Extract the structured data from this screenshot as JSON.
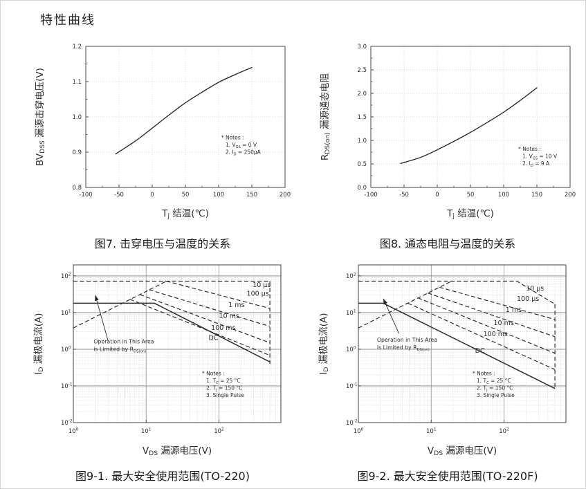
{
  "page": {
    "title": "特性曲线",
    "ink": "#2b2b2b",
    "frame_color": "#444444",
    "grid_minor_color": "#c9c9c9",
    "grid_major_color": "#9a9a9a"
  },
  "chart_data": [
    {
      "id": "fig7",
      "type": "line",
      "caption": "图7. 击穿电压与温度的关系",
      "xlabel": "T[j] 结温(℃)",
      "ylabel": "BV[DSS] 漏源击穿电压(V)",
      "xlim": [
        -100,
        200
      ],
      "ylim": [
        0.8,
        1.2
      ],
      "xticks": [
        -100,
        -50,
        0,
        50,
        100,
        150,
        200
      ],
      "yticks": [
        0.8,
        0.9,
        1.0,
        1.1,
        1.2
      ],
      "ytick_decimals": 1,
      "series": [
        {
          "name": "bvdss-vs-tj",
          "dash": false,
          "x": [
            -55,
            -25,
            0,
            25,
            50,
            75,
            100,
            125,
            150
          ],
          "y": [
            0.895,
            0.932,
            0.968,
            1.005,
            1.04,
            1.07,
            1.098,
            1.12,
            1.14
          ]
        }
      ],
      "notes": {
        "lines": [
          "* Notes :",
          "1. V[GS] = 0 V",
          "2. I[D] = 250μA"
        ],
        "fx": 0.68,
        "fy": 0.66
      }
    },
    {
      "id": "fig8",
      "type": "line",
      "caption": "图8. 通态电阻与温度的关系",
      "xlabel": "T[j] 结温(℃)",
      "ylabel": "R[DS(on)] 漏源通态电阻",
      "xlim": [
        -100,
        200
      ],
      "ylim": [
        0.0,
        3.0
      ],
      "xticks": [
        -100,
        -50,
        0,
        50,
        100,
        150,
        200
      ],
      "yticks": [
        0.0,
        0.5,
        1.0,
        1.5,
        2.0,
        2.5,
        3.0
      ],
      "ytick_decimals": 1,
      "series": [
        {
          "name": "rdson-vs-tj",
          "dash": false,
          "x": [
            -55,
            -25,
            0,
            25,
            50,
            75,
            100,
            125,
            150
          ],
          "y": [
            0.51,
            0.64,
            0.8,
            0.98,
            1.17,
            1.38,
            1.6,
            1.85,
            2.12
          ]
        }
      ],
      "notes": {
        "lines": [
          "* Notes :",
          "1. V[GS] = 10 V",
          "2. I[D] = 9 A"
        ],
        "fx": 0.74,
        "fy": 0.74
      }
    },
    {
      "id": "fig9-1",
      "type": "soa",
      "caption": "图9-1. 最大安全使用范围(TO-220)",
      "xlabel": "V[DS] 漏源电压(V)",
      "ylabel": "I[D] 漏极电流(A)",
      "xlim_exp": [
        0,
        2.85
      ],
      "ylim_exp": [
        -2,
        2.3
      ],
      "xticks_exp": [
        0,
        1,
        2
      ],
      "yticks_exp": [
        -2,
        -1,
        0,
        1,
        2
      ],
      "series": [
        {
          "name": "rdson-limit-line",
          "dash": true,
          "points": [
            [
              1,
              3.8
            ],
            [
              19,
              72
            ]
          ]
        },
        {
          "name": "pulse-10us",
          "dash": true,
          "points": [
            [
              1,
              72
            ],
            [
              500,
              72
            ]
          ],
          "label": "10 μs",
          "label_at": [
            290,
            50
          ]
        },
        {
          "name": "pulse-100us",
          "dash": true,
          "points": [
            [
              19,
              72
            ],
            [
              500,
              13
            ]
          ],
          "label": "100 μs",
          "label_at": [
            240,
            29
          ]
        },
        {
          "name": "pulse-1ms",
          "dash": true,
          "points": [
            [
              11,
              42
            ],
            [
              500,
              4.2
            ]
          ],
          "label": "1 ms",
          "label_at": [
            135,
            14
          ]
        },
        {
          "name": "pulse-10ms",
          "dash": true,
          "points": [
            [
              8.2,
              31
            ],
            [
              500,
              1.5
            ]
          ],
          "label": "10 ms",
          "label_at": [
            100,
            7
          ]
        },
        {
          "name": "pulse-100ms",
          "dash": true,
          "points": [
            [
              6,
              23
            ],
            [
              500,
              0.68
            ]
          ],
          "label": "100 ms",
          "label_at": [
            78,
            3.4
          ]
        },
        {
          "name": "dc-limit",
          "dash": false,
          "points": [
            [
              1,
              18
            ],
            [
              13,
              18
            ],
            [
              500,
              0.45
            ]
          ],
          "label": "DC",
          "label_at": [
            72,
            1.8
          ]
        },
        {
          "name": "bv-limit-line",
          "dash": true,
          "points": [
            [
              500,
              72
            ],
            [
              500,
              0.4
            ]
          ]
        }
      ],
      "annotation": {
        "lines": [
          "Operation in This Area",
          "is Limited by R[DS(on)]"
        ],
        "text_at": [
          1.9,
          1.45
        ],
        "arrow": [
          [
            3.0,
            1.7
          ],
          [
            2.0,
            30
          ]
        ]
      },
      "notes": {
        "lines": [
          "* Notes :",
          "1. T[C] = 25 °C",
          "2. T[J] = 150 °C",
          "3. Single Pulse"
        ],
        "fx": 0.62,
        "fy": 0.7
      }
    },
    {
      "id": "fig9-2",
      "type": "soa",
      "caption": "图9-2. 最大安全使用范围(TO-220F)",
      "xlabel": "V[DS] 漏源电压(V)",
      "ylabel": "I[D] 漏极电流(A)",
      "xlim_exp": [
        0,
        2.85
      ],
      "ylim_exp": [
        -2,
        2.3
      ],
      "xticks_exp": [
        0,
        1,
        2
      ],
      "yticks_exp": [
        -2,
        -1,
        0,
        1,
        2
      ],
      "series": [
        {
          "name": "rdson-limit-line",
          "dash": true,
          "points": [
            [
              1,
              3.8
            ],
            [
              19,
              72
            ]
          ]
        },
        {
          "name": "pulse-10us",
          "dash": true,
          "points": [
            [
              1,
              72
            ],
            [
              150,
              72
            ],
            [
              500,
              17
            ]
          ],
          "label": "10 μs",
          "label_at": [
            200,
            40
          ]
        },
        {
          "name": "pulse-100us",
          "dash": true,
          "points": [
            [
              13,
              49
            ],
            [
              500,
              6.5
            ]
          ],
          "label": "100 μs",
          "label_at": [
            150,
            21
          ]
        },
        {
          "name": "pulse-1ms",
          "dash": true,
          "points": [
            [
              9,
              34
            ],
            [
              500,
              2.2
            ]
          ],
          "label": "1 ms",
          "label_at": [
            105,
            10.5
          ]
        },
        {
          "name": "pulse-10ms",
          "dash": true,
          "points": [
            [
              6.6,
              25
            ],
            [
              500,
              0.78
            ]
          ],
          "label": "10 ms",
          "label_at": [
            72,
            4.6
          ]
        },
        {
          "name": "pulse-100ms",
          "dash": true,
          "points": [
            [
              4.8,
              18
            ],
            [
              500,
              0.28
            ]
          ],
          "label": "100 ms",
          "label_at": [
            52,
            2.3
          ]
        },
        {
          "name": "dc-limit",
          "dash": false,
          "points": [
            [
              1,
              18
            ],
            [
              2.2,
              18
            ],
            [
              500,
              0.085
            ]
          ],
          "label": "DC",
          "label_at": [
            40,
            0.8
          ]
        },
        {
          "name": "bv-limit-line",
          "dash": true,
          "points": [
            [
              500,
              17
            ],
            [
              500,
              0.09
            ]
          ]
        }
      ],
      "annotation": {
        "lines": [
          "Operation in This Area",
          "is Limited by R[DS(on)]"
        ],
        "text_at": [
          1.8,
          1.6
        ],
        "arrow": [
          [
            3.6,
            2.7
          ],
          [
            2.2,
            24
          ]
        ]
      },
      "notes": {
        "lines": [
          "* Notes :",
          "1. T[C] = 25 °C",
          "2. T[J] = 150 °C",
          "3. Single Pulse"
        ],
        "fx": 0.55,
        "fy": 0.7
      }
    }
  ]
}
